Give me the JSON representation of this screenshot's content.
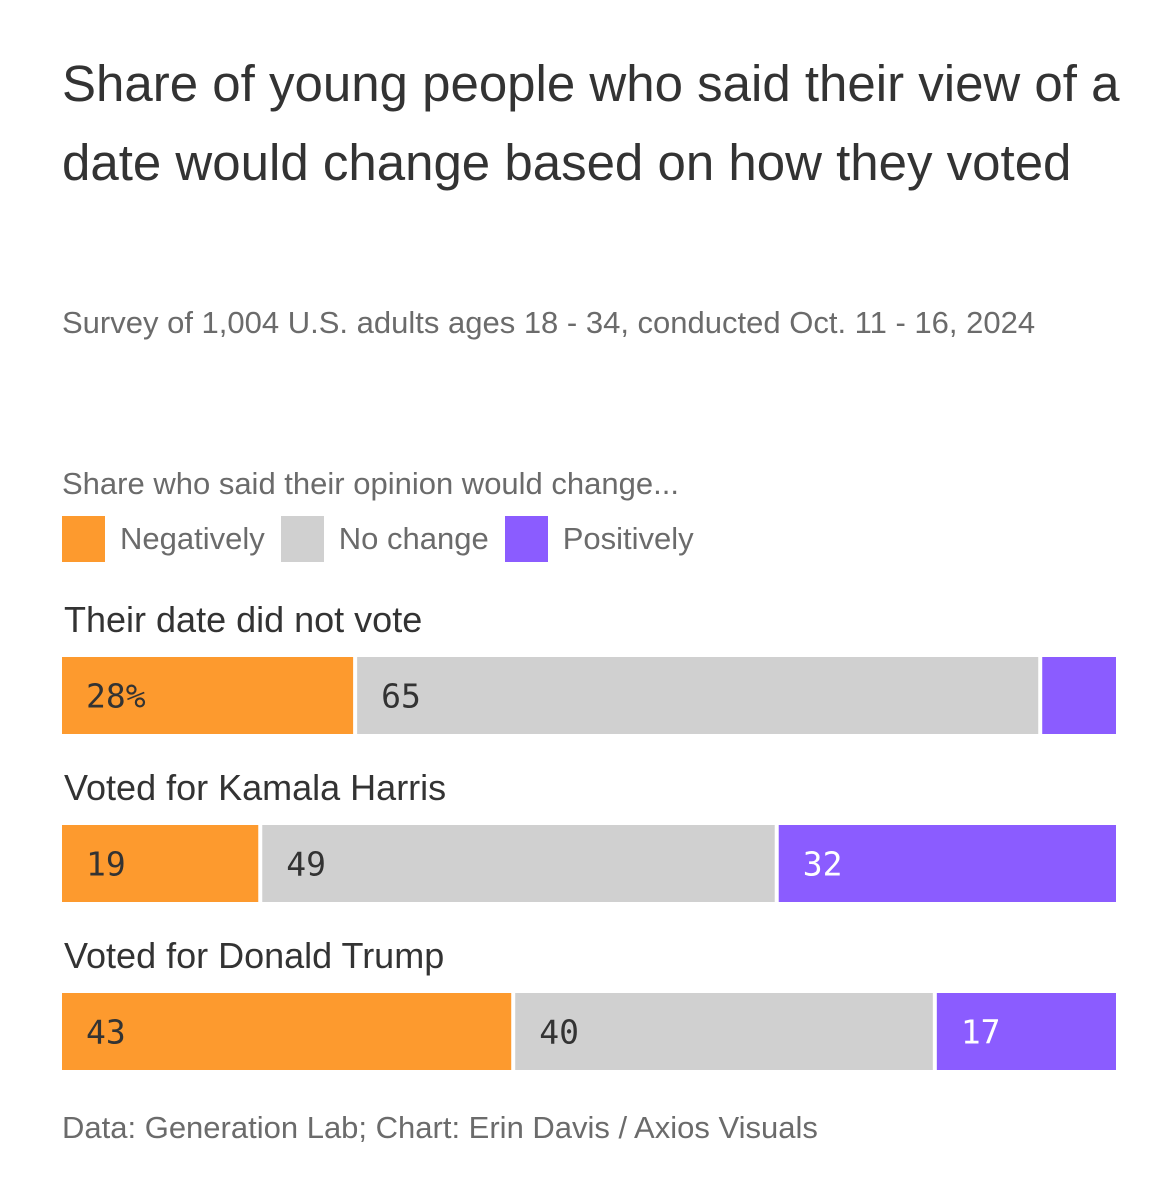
{
  "title": "Share of young people who said their view of a date would change based on how they voted",
  "subtitle": "Survey of 1,004 U.S. adults ages 18 - 34, conducted Oct. 11 - 16, 2024",
  "legend": {
    "title": "Share who said their opinion would change...",
    "items": [
      {
        "label": "Negatively",
        "color": "#fd9a2e"
      },
      {
        "label": "No change",
        "color": "#d0d0d0"
      },
      {
        "label": "Positively",
        "color": "#8b5cff"
      }
    ]
  },
  "source": "Data: Generation Lab; Chart: Erin Davis / Axios Visuals",
  "chart_data": {
    "type": "bar",
    "orientation": "horizontal",
    "stacked": true,
    "categories": [
      "Their date did not vote",
      "Voted for Kamala Harris",
      "Voted for Donald Trump"
    ],
    "series": [
      {
        "name": "Negatively",
        "color": "#fd9a2e",
        "text_color": "#333333",
        "values": [
          28,
          19,
          43
        ],
        "labels": [
          "28%",
          "19",
          "43"
        ]
      },
      {
        "name": "No change",
        "color": "#d0d0d0",
        "text_color": "#333333",
        "values": [
          65,
          49,
          40
        ],
        "labels": [
          "65",
          "49",
          "40"
        ]
      },
      {
        "name": "Positively",
        "color": "#8b5cff",
        "text_color": "#ffffff",
        "values": [
          7,
          32,
          17
        ],
        "labels": [
          "",
          "32",
          "17"
        ]
      }
    ],
    "xlim": [
      0,
      100
    ],
    "unit": "%"
  }
}
